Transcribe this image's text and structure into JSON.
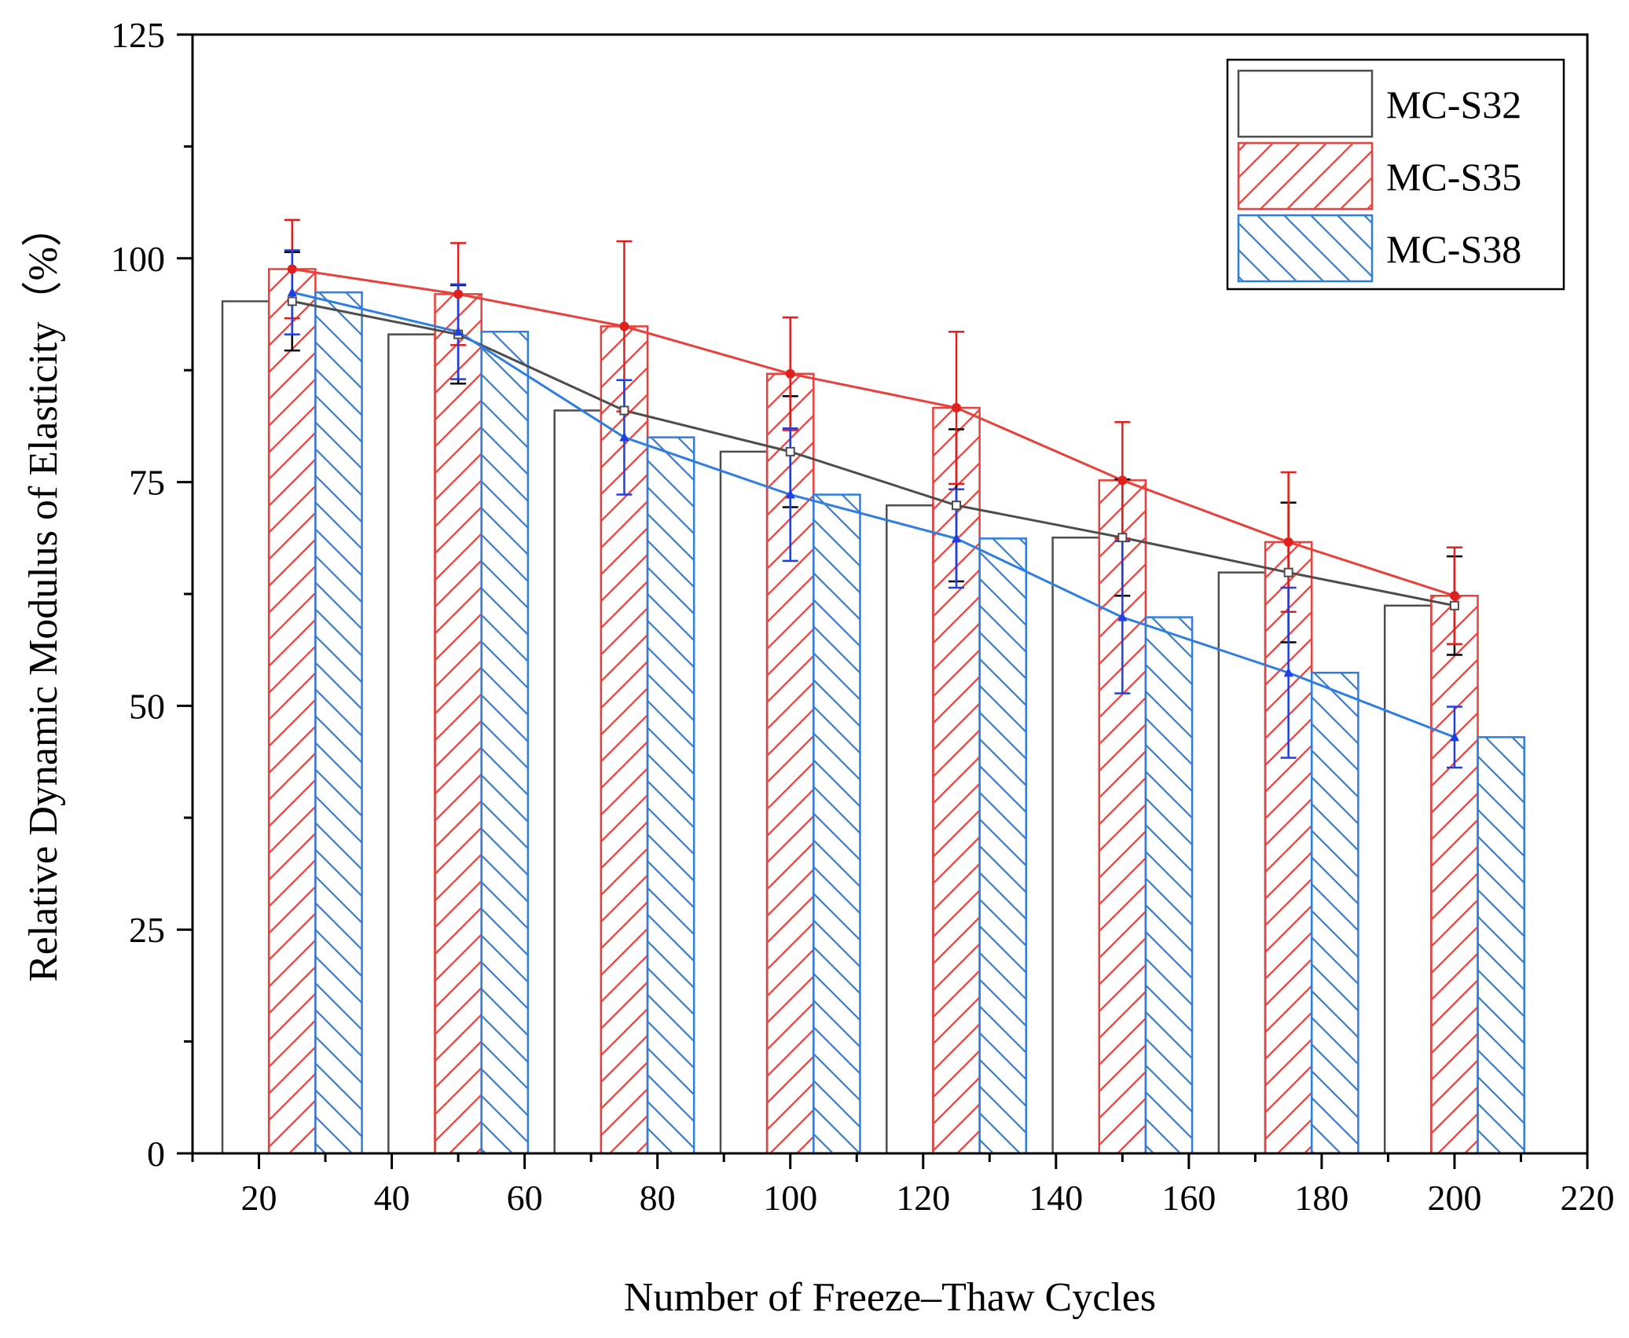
{
  "chart_data": {
    "type": "bar",
    "xlabel": "Number of Freeze–Thaw Cycles",
    "ylabel": "Relative Dynamic Modulus of Elasticity（%）",
    "xlim": [
      10,
      220
    ],
    "ylim": [
      0,
      125
    ],
    "x_ticks": [
      "20",
      "40",
      "60",
      "80",
      "100",
      "120",
      "140",
      "160",
      "180",
      "200",
      "220"
    ],
    "y_ticks": [
      "0",
      "25",
      "50",
      "75",
      "100",
      "125"
    ],
    "x_tick_values": [
      20,
      40,
      60,
      80,
      100,
      120,
      140,
      160,
      180,
      200,
      220
    ],
    "y_tick_values": [
      0,
      25,
      50,
      75,
      100,
      125
    ],
    "categories": [
      25,
      50,
      75,
      100,
      125,
      150,
      175,
      200
    ],
    "legend_position": "top-right",
    "series": [
      {
        "name": "MC-S32",
        "color": "#4d4d4d",
        "pattern": "none",
        "values": [
          95.2,
          91.5,
          83.0,
          78.4,
          72.4,
          68.8,
          64.9,
          61.2
        ],
        "errors": [
          5.5,
          5.5,
          0,
          6.2,
          8.5,
          6.5,
          7.8,
          5.5
        ]
      },
      {
        "name": "MC-S35",
        "color": "#e8413c",
        "pattern": "forward-hatch",
        "values": [
          98.8,
          96.0,
          92.4,
          87.1,
          83.3,
          75.2,
          68.3,
          62.3
        ],
        "errors": [
          5.5,
          5.7,
          9.5,
          6.3,
          8.5,
          6.5,
          7.8,
          5.4
        ]
      },
      {
        "name": "MC-S38",
        "color": "#2e7de0",
        "pattern": "back-hatch",
        "values": [
          96.2,
          91.8,
          80.0,
          73.6,
          68.7,
          59.9,
          53.7,
          46.5
        ],
        "errors": [
          4.7,
          5.3,
          6.4,
          7.4,
          5.5,
          8.5,
          9.5,
          3.4
        ]
      }
    ]
  }
}
